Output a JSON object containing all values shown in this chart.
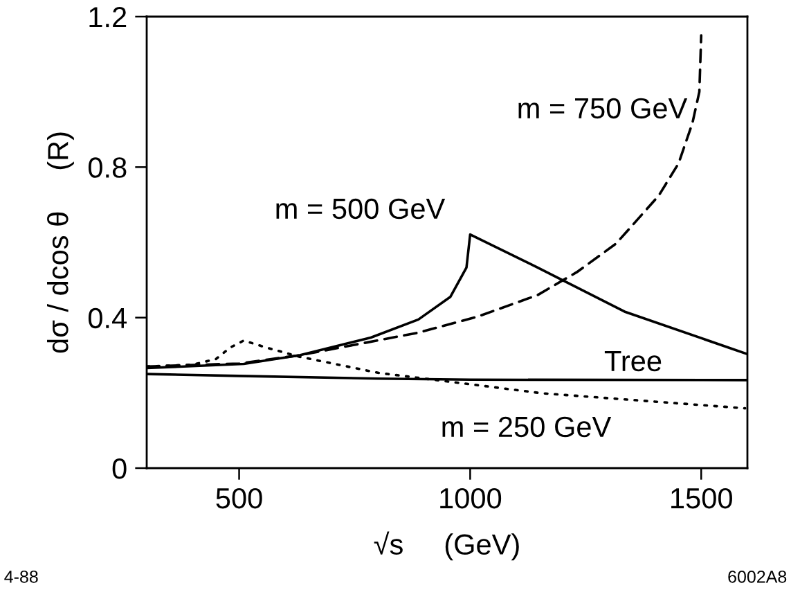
{
  "chart_data": {
    "type": "line",
    "xlabel": "√s     (GeV)",
    "ylabel": "dσ / dcos θ     (R)",
    "xlim": [
      300,
      1600
    ],
    "ylim": [
      0,
      1.2
    ],
    "xticks": [
      500,
      1000,
      1500
    ],
    "yticks": [
      0,
      0.4,
      0.8,
      1.2
    ],
    "grid": false,
    "legend": false,
    "marker": "none",
    "series": [
      {
        "color": "#000000",
        "line_style": "solid",
        "x": [
          300,
          500,
          800,
          1000,
          1600
        ],
        "values": [
          0.25,
          0.245,
          0.238,
          0.235,
          0.234
        ]
      },
      {
        "color": "#000000",
        "line_style": "solid",
        "x": [
          300,
          510,
          631,
          785,
          888,
          957,
          992,
          1000,
          1146,
          1334,
          1600
        ],
        "values": [
          0.266,
          0.277,
          0.3,
          0.347,
          0.395,
          0.455,
          0.533,
          0.621,
          0.533,
          0.416,
          0.303
        ]
      },
      {
        "color": "#000000",
        "line_style": "dashed",
        "x": [
          300,
          500,
          631,
          888,
          1017,
          1146,
          1231,
          1316,
          1408,
          1451,
          1481,
          1496,
          1500
        ],
        "values": [
          0.27,
          0.278,
          0.3,
          0.36,
          0.403,
          0.46,
          0.521,
          0.597,
          0.724,
          0.81,
          0.917,
          1.0,
          1.15
        ]
      },
      {
        "color": "#000000",
        "line_style": "dotted",
        "x": [
          300,
          400,
          450,
          480,
          510,
          560,
          631,
          802,
          1000,
          1155,
          1595
        ],
        "values": [
          0.27,
          0.275,
          0.29,
          0.32,
          0.339,
          0.32,
          0.296,
          0.253,
          0.223,
          0.199,
          0.159
        ]
      }
    ],
    "annotations": [
      "m = 750 GeV",
      "m = 500 GeV",
      "Tree",
      "m = 250 GeV",
      "4-88",
      "6002A8"
    ]
  }
}
